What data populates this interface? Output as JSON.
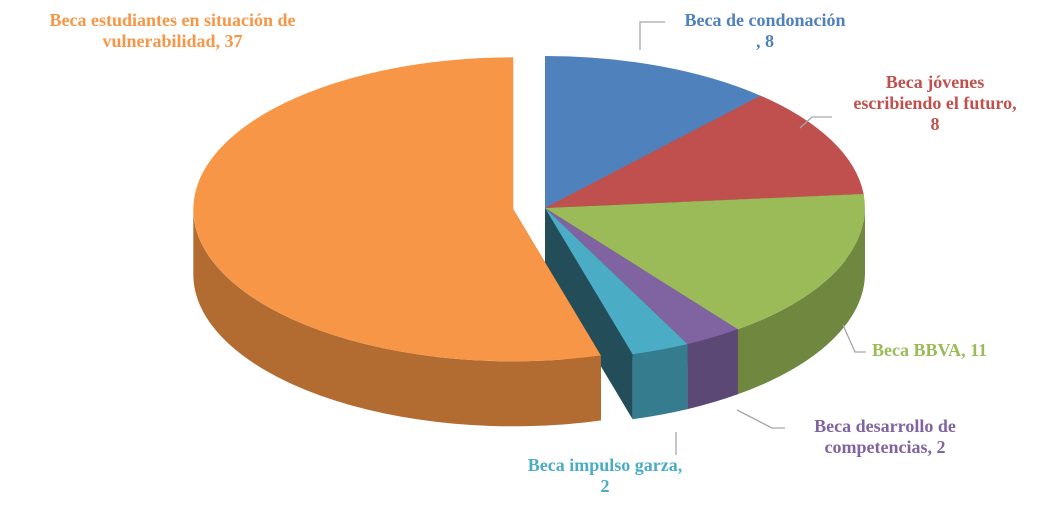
{
  "chart_data": {
    "type": "pie3d",
    "value_labels": [
      "Beca de condonación\n, 8",
      "Beca jóvenes\nescribiendo el futuro,\n8",
      "Beca BBVA, 11",
      "Beca desarrollo de\ncompetencias, 2",
      "Beca impulso garza,\n2",
      "Beca estudiantes en situación de\nvulnerabilidad, 37"
    ],
    "values": [
      8,
      8,
      11,
      2,
      2,
      37
    ],
    "colors": [
      "#4f81bd",
      "#c0504d",
      "#9bbb59",
      "#8064a2",
      "#4bacc6",
      "#f79646"
    ],
    "exploded": [
      false,
      false,
      false,
      false,
      false,
      true
    ]
  }
}
